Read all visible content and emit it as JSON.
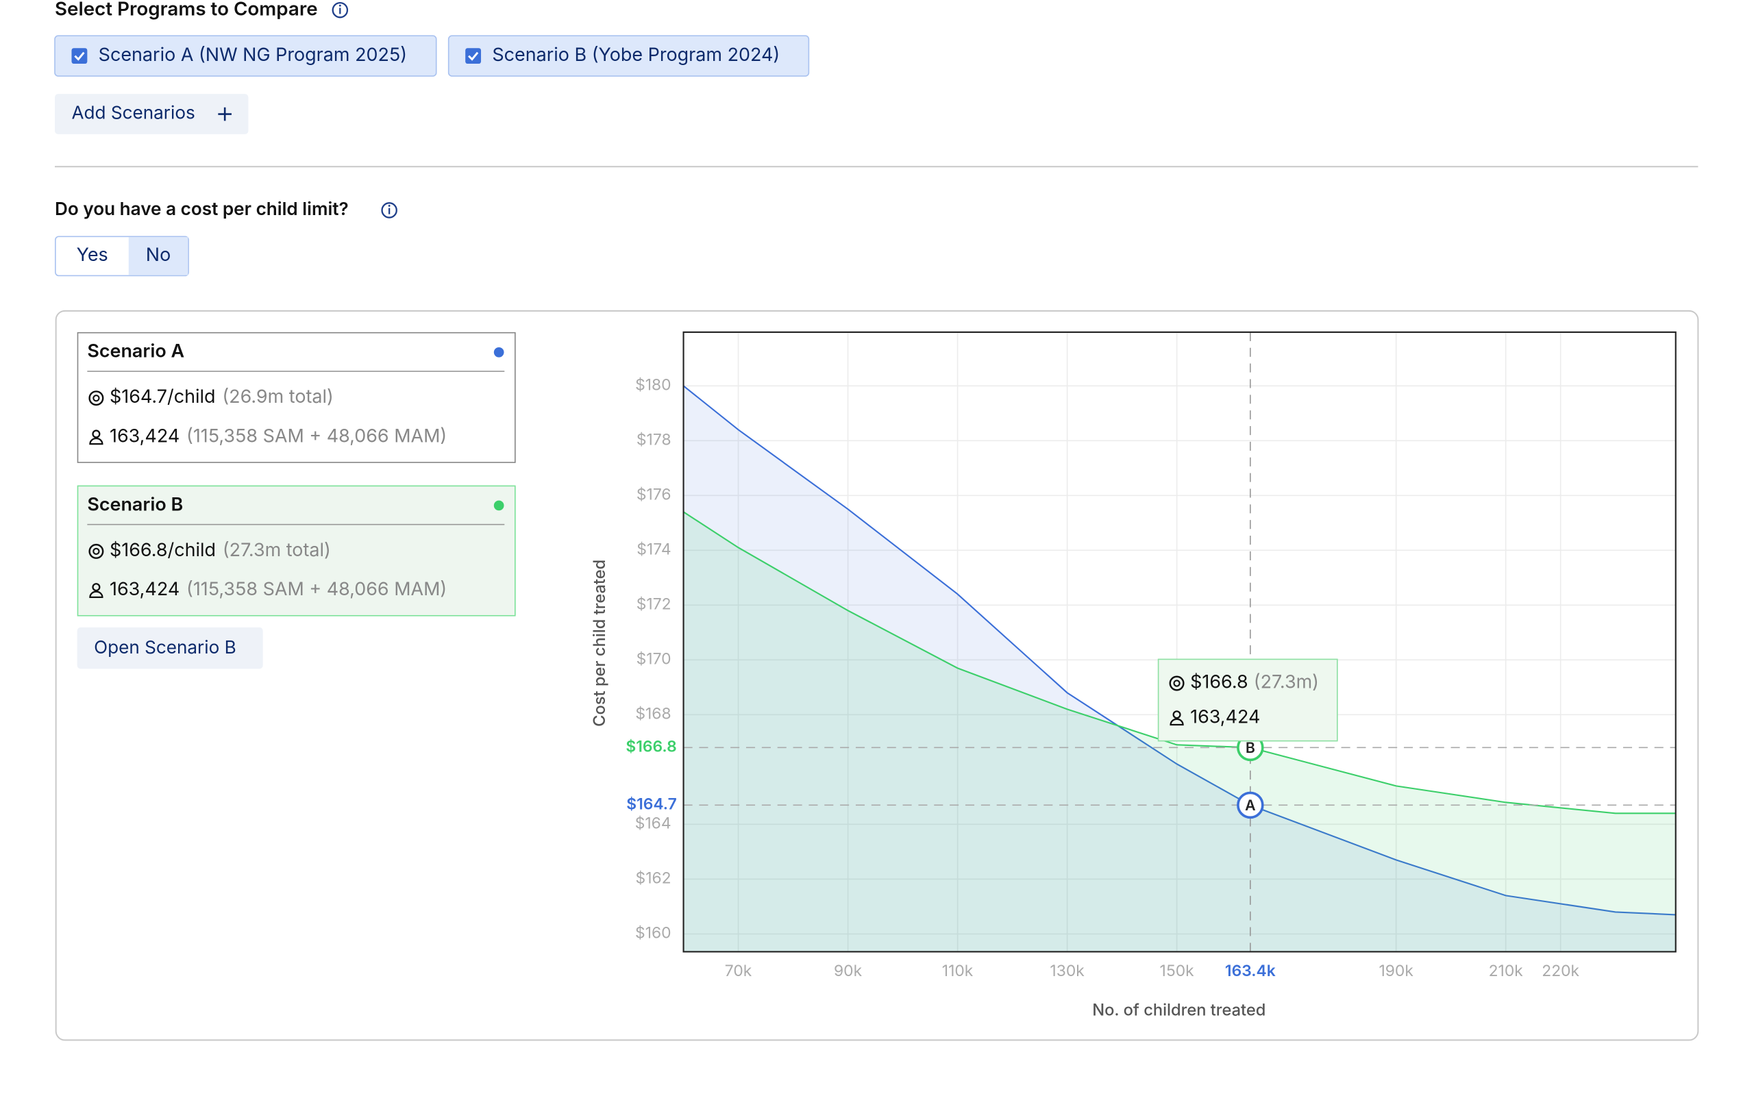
{
  "header": {
    "title": "Select Programs to Compare"
  },
  "scenario_chips": [
    "Scenario A (NW NG Program 2025)",
    "Scenario B (Yobe Program 2024)"
  ],
  "add_button": "Add Scenarios",
  "limit_question": "Do you have a cost per child limit?",
  "limit_toggle": {
    "options": [
      "Yes",
      "No"
    ],
    "selected": 1
  },
  "cards": [
    {
      "name": "Scenario A",
      "cost": "$164.7/child",
      "total": "(26.9m total)",
      "children": "163,424",
      "breakdown": "(115,358 SAM + 48,066 MAM)",
      "color": "#3b6fd8"
    },
    {
      "name": "Scenario B",
      "cost": "$166.8/child",
      "total": "(27.3m total)",
      "children": "163,424",
      "breakdown": "(115,358 SAM + 48,066 MAM)",
      "color": "#3ccf6a"
    }
  ],
  "open_button": "Open Scenario B",
  "chart_data": {
    "type": "line",
    "x_label": "No. of children treated",
    "y_label": "Cost per child treated",
    "x": [
      60000,
      70000,
      90000,
      110000,
      130000,
      150000,
      163400,
      190000,
      210000,
      230000,
      241000
    ],
    "series": [
      {
        "name": "A",
        "color": "#3b6fd8",
        "fill": "rgba(59,111,216,0.10)",
        "values": [
          180,
          178.4,
          175.5,
          172.4,
          168.8,
          166.2,
          164.7,
          162.7,
          161.4,
          160.8,
          160.7
        ]
      },
      {
        "name": "B",
        "color": "#3ccf6a",
        "fill": "rgba(60,207,106,0.12)",
        "values": [
          175.4,
          174.1,
          171.8,
          169.7,
          168.2,
          166.9,
          166.8,
          165.4,
          164.8,
          164.4,
          164.4
        ]
      }
    ],
    "xlim": [
      60000,
      241000
    ],
    "ylim": [
      159.35,
      181.96
    ],
    "xticks": [
      {
        "value": 70000,
        "label": "70k"
      },
      {
        "value": 90000,
        "label": "90k"
      },
      {
        "value": 110000,
        "label": "110k"
      },
      {
        "value": 130000,
        "label": "130k"
      },
      {
        "value": 150000,
        "label": "150k"
      },
      {
        "value": 190000,
        "label": "190k"
      },
      {
        "value": 210000,
        "label": "210k"
      },
      {
        "value": 220000,
        "label": "220k"
      }
    ],
    "yticks": [
      {
        "value": 160,
        "label": "$160"
      },
      {
        "value": 162,
        "label": "$162"
      },
      {
        "value": 164,
        "label": "$164"
      },
      {
        "value": 168,
        "label": "$168"
      },
      {
        "value": 170,
        "label": "$170"
      },
      {
        "value": 172,
        "label": "$172"
      },
      {
        "value": 174,
        "label": "$174"
      },
      {
        "value": 176,
        "label": "$176"
      },
      {
        "value": 178,
        "label": "$178"
      },
      {
        "value": 180,
        "label": "$180"
      }
    ],
    "grid": true,
    "selection": {
      "x": 163400,
      "x_label": "163.4k",
      "x_color": "#3b6fd8"
    },
    "markers": [
      {
        "label": "A",
        "y": 164.7,
        "y_label": "$164.7",
        "color": "#3b6fd8"
      },
      {
        "label": "B",
        "y": 166.8,
        "y_label": "$166.8",
        "color": "#3ccf6a"
      }
    ],
    "tooltip": {
      "cost": "$166.8",
      "total": "(27.3m)",
      "children": "163,424"
    }
  }
}
